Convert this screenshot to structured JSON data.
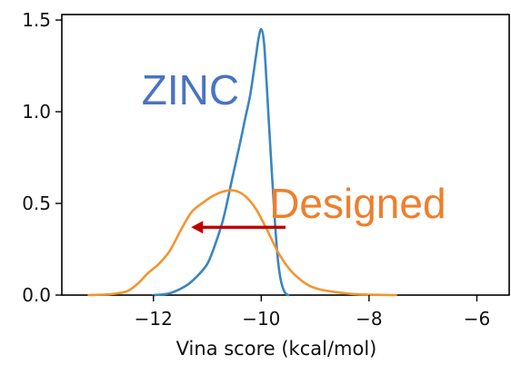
{
  "chart_data": {
    "type": "line",
    "title": "",
    "xlabel": "Vina score (kcal/mol)",
    "ylabel": "",
    "xlim": [
      -13.7,
      -5.4
    ],
    "ylim": [
      0,
      1.53
    ],
    "xticks": [
      -12,
      -10,
      -8,
      -6
    ],
    "xtick_labels": [
      "−12",
      "−10",
      "−8",
      "−6"
    ],
    "yticks": [
      0.0,
      0.5,
      1.0,
      1.5
    ],
    "ytick_labels": [
      "0.0",
      "0.5",
      "1.0",
      "1.5"
    ],
    "grid": false,
    "legend": "none",
    "series": [
      {
        "color": "#3a86c0",
        "x": [
          -12.0,
          -11.7,
          -11.4,
          -11.2,
          -11.0,
          -10.85,
          -10.7,
          -10.55,
          -10.4,
          -10.3,
          -10.2,
          -10.1,
          -10.05,
          -10.0,
          -9.95,
          -9.9,
          -9.85,
          -9.8,
          -9.75,
          -9.7,
          -9.65,
          -9.6,
          -9.55,
          -9.5
        ],
        "y": [
          0.0,
          0.01,
          0.05,
          0.1,
          0.17,
          0.28,
          0.42,
          0.62,
          0.82,
          0.96,
          1.1,
          1.3,
          1.4,
          1.45,
          1.38,
          1.15,
          0.9,
          0.65,
          0.42,
          0.22,
          0.1,
          0.04,
          0.01,
          0.0
        ]
      },
      {
        "color": "#f39530",
        "x": [
          -13.2,
          -12.8,
          -12.5,
          -12.3,
          -12.1,
          -11.9,
          -11.7,
          -11.5,
          -11.3,
          -11.1,
          -10.9,
          -10.7,
          -10.5,
          -10.3,
          -10.1,
          -9.9,
          -9.7,
          -9.5,
          -9.3,
          -9.1,
          -8.9,
          -8.7,
          -8.5,
          -8.3,
          -8.0,
          -7.5
        ],
        "y": [
          0.0,
          0.005,
          0.02,
          0.06,
          0.12,
          0.17,
          0.24,
          0.35,
          0.45,
          0.5,
          0.54,
          0.565,
          0.57,
          0.54,
          0.47,
          0.36,
          0.24,
          0.15,
          0.09,
          0.05,
          0.03,
          0.02,
          0.012,
          0.006,
          0.002,
          0.0
        ]
      }
    ],
    "annotations": [
      {
        "text": "ZINC",
        "color": "#4a73c2",
        "x": -12.22,
        "y": 1.04
      },
      {
        "text": "Designed",
        "color": "#ee7f2d",
        "x": -9.85,
        "y": 0.42
      }
    ],
    "arrow": {
      "color": "#c00000",
      "from": [
        -9.55,
        0.37
      ],
      "to": [
        -11.3,
        0.37
      ]
    }
  }
}
